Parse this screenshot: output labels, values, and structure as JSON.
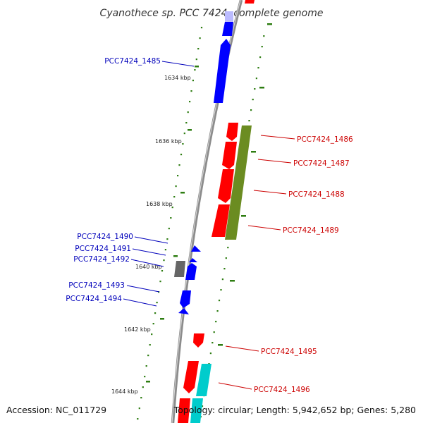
{
  "title": "Cyanothece sp. PCC 7424, complete genome",
  "accession": "Accession: NC_011729",
  "topology": "Topology: circular; Length: 5,942,652 bp; Genes: 5,280",
  "colors": {
    "backbone": "#8c8c8c",
    "tick": "#2e7d12",
    "dot": "#2e7d12",
    "gene_red": "#ff0000",
    "gene_blue": "#0000ff",
    "gene_olive": "#6b8c21",
    "gene_gray": "#666666",
    "gene_cyan": "#00cccc",
    "gene_lavender": "#bbbbff",
    "label_blue": "#0000bb",
    "label_red": "#cc0000"
  },
  "scale_labels": [
    {
      "text": "1634 kbp",
      "kbp": 1634
    },
    {
      "text": "1636 kbp",
      "kbp": 1636
    },
    {
      "text": "1638 kbp",
      "kbp": 1638
    },
    {
      "text": "1640 kbp",
      "kbp": 1640
    },
    {
      "text": "1642 kbp",
      "kbp": 1642
    },
    {
      "text": "1644 kbp",
      "kbp": 1644
    }
  ],
  "gene_labels": [
    {
      "text": "PCC7424_1485",
      "strand": "minus"
    },
    {
      "text": "PCC7424_1486",
      "strand": "plus"
    },
    {
      "text": "PCC7424_1487",
      "strand": "plus"
    },
    {
      "text": "PCC7424_1488",
      "strand": "plus"
    },
    {
      "text": "PCC7424_1489",
      "strand": "plus"
    },
    {
      "text": "PCC7424_1490",
      "strand": "minus"
    },
    {
      "text": "PCC7424_1491",
      "strand": "minus"
    },
    {
      "text": "PCC7424_1492",
      "strand": "minus"
    },
    {
      "text": "PCC7424_1493",
      "strand": "minus"
    },
    {
      "text": "PCC7424_1494",
      "strand": "minus"
    },
    {
      "text": "PCC7424_1495",
      "strand": "plus"
    },
    {
      "text": "PCC7424_1496",
      "strand": "plus"
    }
  ]
}
